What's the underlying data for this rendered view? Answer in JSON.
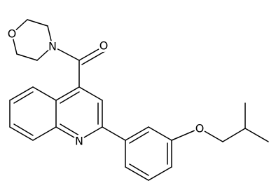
{
  "atoms": [
    {
      "label": "O"
    },
    {
      "label": "N"
    },
    {
      "label": "O"
    },
    {
      "label": "N"
    },
    {
      "label": "O"
    }
  ]
}
